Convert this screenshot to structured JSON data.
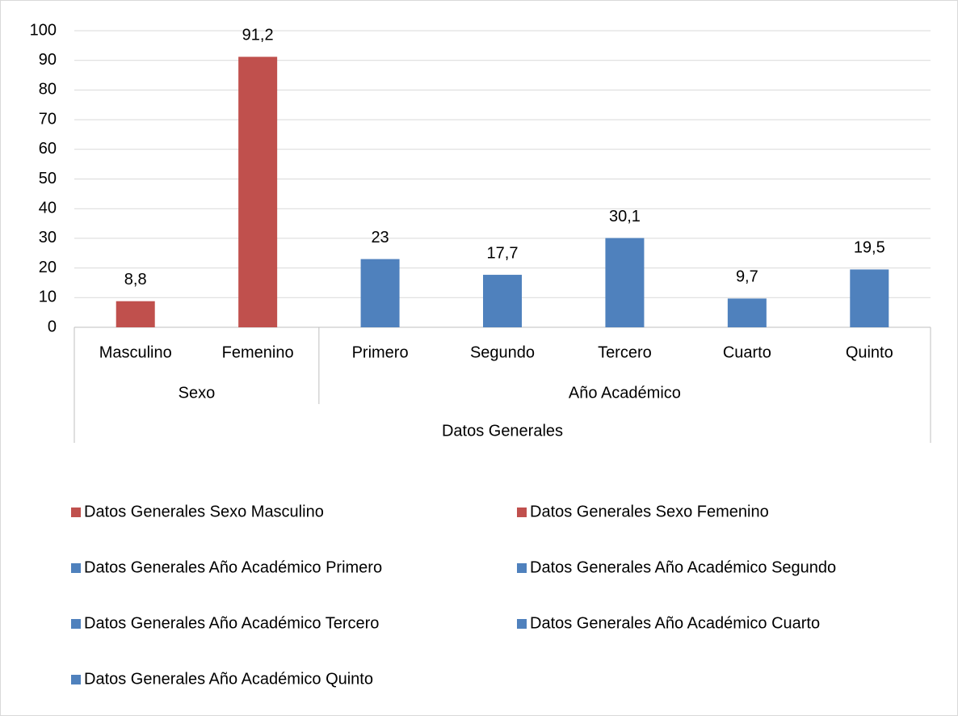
{
  "chart_data": {
    "type": "bar",
    "category_groups": [
      {
        "label": "Sexo",
        "categories": [
          "Masculino",
          "Femenino"
        ]
      },
      {
        "label": "Año Académico",
        "categories": [
          "Primero",
          "Segundo",
          "Tercero",
          "Cuarto",
          "Quinto"
        ]
      }
    ],
    "category_axis_title": "Datos Generales",
    "values": [
      8.8,
      91.2,
      23,
      17.7,
      30.1,
      9.7,
      19.5
    ],
    "value_labels": [
      "8,8",
      "91,2",
      "23",
      "17,7",
      "30,1",
      "9,7",
      "19,5"
    ],
    "colors": [
      "#c0504d",
      "#c0504d",
      "#4f81bd",
      "#4f81bd",
      "#4f81bd",
      "#4f81bd",
      "#4f81bd"
    ],
    "legend": [
      "Datos Generales Sexo Masculino",
      "Datos Generales Sexo Femenino",
      "Datos Generales Año Académico Primero",
      "Datos Generales Año Académico Segundo",
      "Datos Generales Año Académico Tercero",
      "Datos Generales Año Académico Cuarto",
      "Datos Generales Año Académico Quinto"
    ],
    "ylim": [
      0,
      100
    ],
    "yticks": [
      0,
      10,
      20,
      30,
      40,
      50,
      60,
      70,
      80,
      90,
      100
    ],
    "grid": true
  }
}
